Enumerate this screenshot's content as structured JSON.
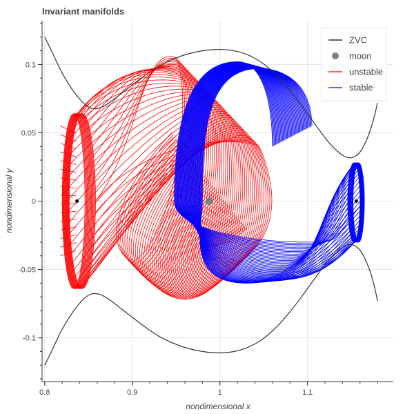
{
  "chart_data": {
    "type": "line",
    "title": "Invariant manifolds",
    "xlabel": "nondimensional x",
    "ylabel": "nondimensional y",
    "xlim": [
      0.797,
      1.198
    ],
    "ylim": [
      -0.132,
      0.132
    ],
    "x_ticks": [
      {
        "value": 0.8,
        "label": "0.8"
      },
      {
        "value": 0.9,
        "label": "0.9"
      },
      {
        "value": 1.0,
        "label": "1"
      },
      {
        "value": 1.1,
        "label": "1.1"
      }
    ],
    "y_ticks": [
      {
        "value": 0.1,
        "label": "0.1"
      },
      {
        "value": 0.05,
        "label": "0.05"
      },
      {
        "value": 0.0,
        "label": "0"
      },
      {
        "value": -0.05,
        "label": "-0.05"
      },
      {
        "value": -0.1,
        "label": "-0.1"
      }
    ],
    "grid": true,
    "legend_position": "top-right",
    "legend": [
      {
        "label": "ZVC",
        "kind": "line",
        "color": "#000000"
      },
      {
        "label": "moon",
        "kind": "circle",
        "color": "#808080"
      },
      {
        "label": "unstable",
        "kind": "line",
        "color": "#ff0000"
      },
      {
        "label": "stable",
        "kind": "line",
        "color": "#0000ff"
      }
    ],
    "zvc": {
      "color": "#333333",
      "curves": [
        {
          "x": [
            0.8,
            0.81,
            0.82,
            0.835,
            0.848,
            0.858,
            0.87,
            0.89,
            0.91,
            0.93,
            0.95,
            0.97,
            0.99,
            1.01,
            1.03,
            1.05,
            1.07,
            1.09,
            1.11,
            1.125,
            1.14,
            1.15,
            1.16,
            1.168,
            1.175,
            1.18
          ],
          "y": [
            0.12,
            0.107,
            0.093,
            0.078,
            0.069,
            0.067,
            0.07,
            0.08,
            0.09,
            0.099,
            0.105,
            0.109,
            0.111,
            0.111,
            0.108,
            0.101,
            0.089,
            0.073,
            0.055,
            0.042,
            0.033,
            0.031,
            0.035,
            0.045,
            0.058,
            0.072
          ]
        },
        {
          "x": [
            0.8,
            0.81,
            0.82,
            0.835,
            0.848,
            0.858,
            0.87,
            0.89,
            0.91,
            0.93,
            0.95,
            0.97,
            0.99,
            1.01,
            1.03,
            1.05,
            1.07,
            1.09,
            1.11,
            1.125,
            1.14,
            1.15,
            1.16,
            1.168,
            1.175,
            1.18
          ],
          "y": [
            -0.12,
            -0.107,
            -0.093,
            -0.078,
            -0.069,
            -0.067,
            -0.07,
            -0.08,
            -0.09,
            -0.099,
            -0.105,
            -0.109,
            -0.111,
            -0.111,
            -0.108,
            -0.101,
            -0.089,
            -0.073,
            -0.055,
            -0.042,
            -0.033,
            -0.031,
            -0.035,
            -0.045,
            -0.058,
            -0.073
          ]
        }
      ]
    },
    "moon": {
      "x": 0.9878,
      "y": 0.0,
      "color": "#808080"
    },
    "libration_points": {
      "x": [
        0.8369,
        1.1557
      ],
      "y": [
        0.0,
        0.0
      ],
      "color": "#000000"
    },
    "unstable": {
      "color": "#ff0000",
      "lyapunov_orbit": {
        "x_left": 0.82,
        "x_right": 0.858,
        "y_top": 0.064,
        "y_bottom": -0.064,
        "top_x": 0.845
      },
      "branch_count": 48,
      "branches": {
        "start_x": [
          0.945,
          0.92,
          0.88,
          0.86,
          0.85,
          0.975,
          0.98,
          0.985,
          1.0,
          1.03
        ],
        "apex_x": [
          0.95,
          0.96,
          0.985,
          1.01,
          1.03,
          1.04,
          1.045
        ],
        "apex_y": [
          0.105,
          0.1,
          0.093,
          0.085,
          0.075,
          0.06,
          0.04
        ],
        "lower_extent_y": -0.072,
        "lower_extent_x": 1.02,
        "left_fan_x": 0.818,
        "left_fan_y": [
          0.055,
          -0.04
        ]
      }
    },
    "stable": {
      "color": "#0000ff",
      "lyapunov_orbit": {
        "x_left": 1.146,
        "x_right": 1.165,
        "y_top": 0.028,
        "y_bottom": -0.03,
        "top_x": 1.158
      },
      "branch_count": 48,
      "branches": {
        "inner_loop_x": [
          0.965,
          0.97,
          0.98
        ],
        "outer_loop_x": [
          0.948,
          0.955
        ],
        "top_y": [
          0.102,
          0.1,
          0.097
        ],
        "top_x": [
          1.02,
          1.03,
          1.045
        ],
        "end_x": [
          1.06,
          1.075,
          1.09,
          1.105
        ],
        "end_y": [
          0.04,
          0.045,
          0.05,
          0.055
        ],
        "lower_y": [
          -0.03,
          -0.04,
          -0.055,
          -0.06
        ],
        "lower_x": 1.03
      }
    }
  }
}
